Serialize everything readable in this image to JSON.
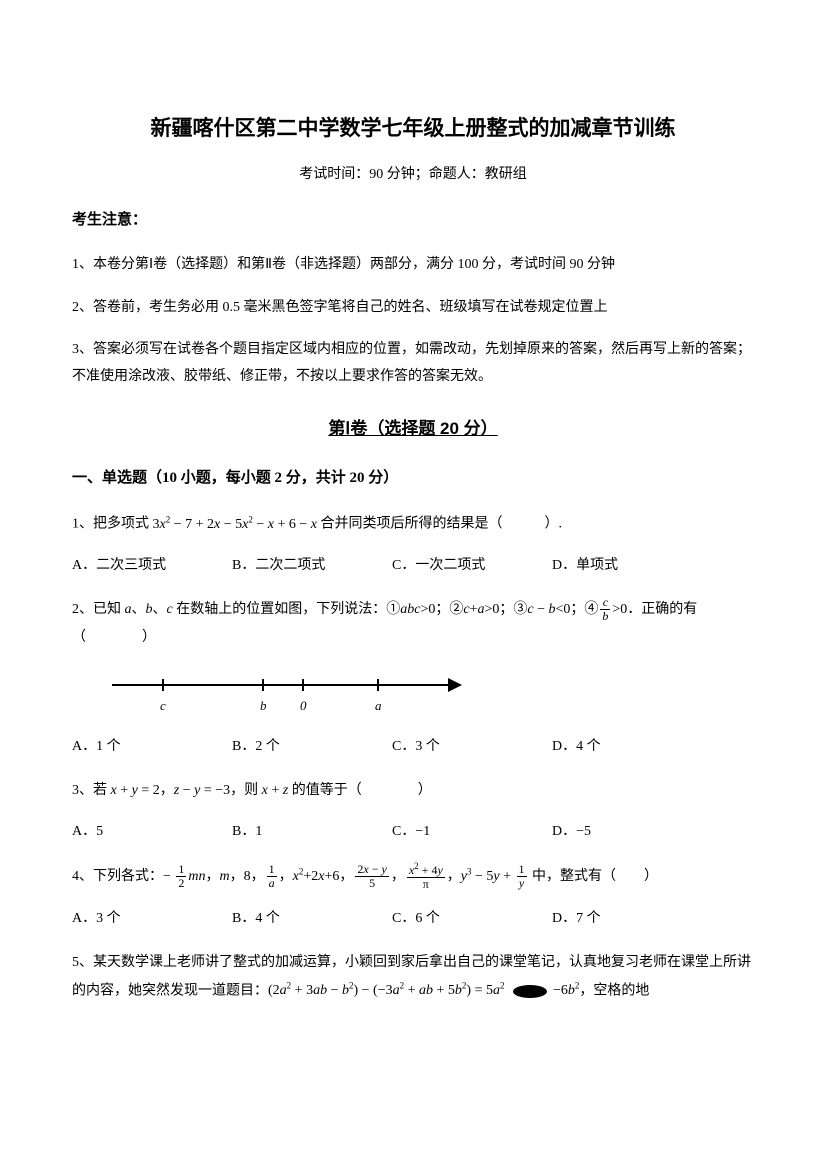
{
  "title": "新疆喀什区第二中学数学七年级上册整式的加减章节训练",
  "subtitle": "考试时间：90 分钟；命题人：教研组",
  "notice_heading": "考生注意：",
  "instructions": [
    "1、本卷分第Ⅰ卷（选择题）和第Ⅱ卷（非选择题）两部分，满分 100 分，考试时间 90 分钟",
    "2、答卷前，考生务必用 0.5 毫米黑色签字笔将自己的姓名、班级填写在试卷规定位置上",
    "3、答案必须写在试卷各个题目指定区域内相应的位置，如需改动，先划掉原来的答案，然后再写上新的答案；不准使用涂改液、胶带纸、修正带，不按以上要求作答的答案无效。"
  ],
  "section1_title": "第Ⅰ卷（选择题  20 分）",
  "part_heading": "一、单选题（10 小题，每小题 2 分，共计 20 分）",
  "q1": {
    "prefix": "1、把多项式 ",
    "expr_html": "3<span class='italic'>x</span><span class='sup'>2</span> − 7 + 2<span class='italic'>x</span> − 5<span class='italic'>x</span><span class='sup'>2</span> − <span class='italic'>x</span> + 6 − <span class='italic'>x</span>",
    "suffix": " 合并同类项后所得的结果是（　　　）.",
    "opts": {
      "a": "A．二次三项式",
      "b": "B．二次二项式",
      "c": "C．一次二项式",
      "d": "D．单项式"
    }
  },
  "q2": {
    "prefix": "2、已知 ",
    "vars_html": "<span class='italic'>a</span>、<span class='italic'>b</span>、<span class='italic'>c</span>",
    "mid1": " 在数轴上的位置如图，下列说法：①",
    "e1_html": "<span class='italic'>abc</span>>0",
    "mid2": "；②",
    "e2_html": "<span class='italic'>c</span>+<span class='italic'>a</span>>0",
    "mid3": "；③",
    "e3_html": "<span class='italic'>c</span> − <span class='italic'>b</span><0",
    "mid4": "；④",
    "e4_num": "c",
    "e4_den": "b",
    "e4_after": ">0",
    "suffix": "．正确的有（　　　　）",
    "ticks": {
      "c": {
        "pos": 50,
        "label": "c"
      },
      "b": {
        "pos": 150,
        "label": "b"
      },
      "zero": {
        "pos": 190,
        "label": "0"
      },
      "a": {
        "pos": 265,
        "label": "a"
      }
    },
    "opts": {
      "a": "A．1 个",
      "b": "B．2 个",
      "c": "C．3 个",
      "d": "D．4 个"
    }
  },
  "q3": {
    "prefix": "3、若 ",
    "e1_html": "<span class='italic'>x</span> + <span class='italic'>y</span> = 2",
    "mid1": "，",
    "e2_html": "<span class='italic'>z</span> − <span class='italic'>y</span> = −3",
    "mid2": "，则 ",
    "e3_html": "<span class='italic'>x</span> + <span class='italic'>z</span>",
    "suffix": " 的值等于（　　　　）",
    "opts": {
      "a": "A．5",
      "b": "B．1",
      "c": "C．−1",
      "d": "D．−5"
    }
  },
  "q4": {
    "prefix": "4、下列各式：",
    "list_html": "− <span class='fraction'><span class='num'>1</span><span class='den'>2</span></span><span class='italic'>mn</span>，<span class='italic'>m</span>，8，<span class='fraction'><span class='num'>1</span><span class='den italic'>a</span></span>，<span class='italic'>x</span><span class='sup'>2</span>+2<span class='italic'>x</span>+6，<span class='fraction'><span class='num'>2<span class='italic'>x</span> − <span class='italic'>y</span></span><span class='den'>5</span></span>，<span class='fraction'><span class='num'><span class='italic'>x</span><span class='sup'>2</span> + 4<span class='italic'>y</span></span><span class='den'>π</span></span>，<span class='italic'>y</span><span class='sup'>3</span> − 5<span class='italic'>y</span> + <span class='fraction'><span class='num'>1</span><span class='den italic'>y</span></span>",
    "suffix": " 中，整式有（　　）",
    "opts": {
      "a": "A．3 个",
      "b": "B．4 个",
      "c": "C．6 个",
      "d": "D．7 个"
    }
  },
  "q5": {
    "prefix": "5、某天数学课上老师讲了整式的加减运算，小颖回到家后拿出自己的课堂笔记，认真地复习老师在课堂上所讲的内容，她突然发现一道题目：",
    "expr_html": "(2<span class='italic'>a</span><span class='sup'>2</span> + 3<span class='italic'>ab</span> − <span class='italic'>b</span><span class='sup'>2</span>) − (−3<span class='italic'>a</span><span class='sup'>2</span> + <span class='italic'>ab</span> + 5<span class='italic'>b</span><span class='sup'>2</span>) = 5<span class='italic'>a</span><span class='sup'>2</span>",
    "blank_after": " −6<span class='italic'>b</span><span class='sup'>2</span>",
    "suffix": "，空格的地"
  }
}
